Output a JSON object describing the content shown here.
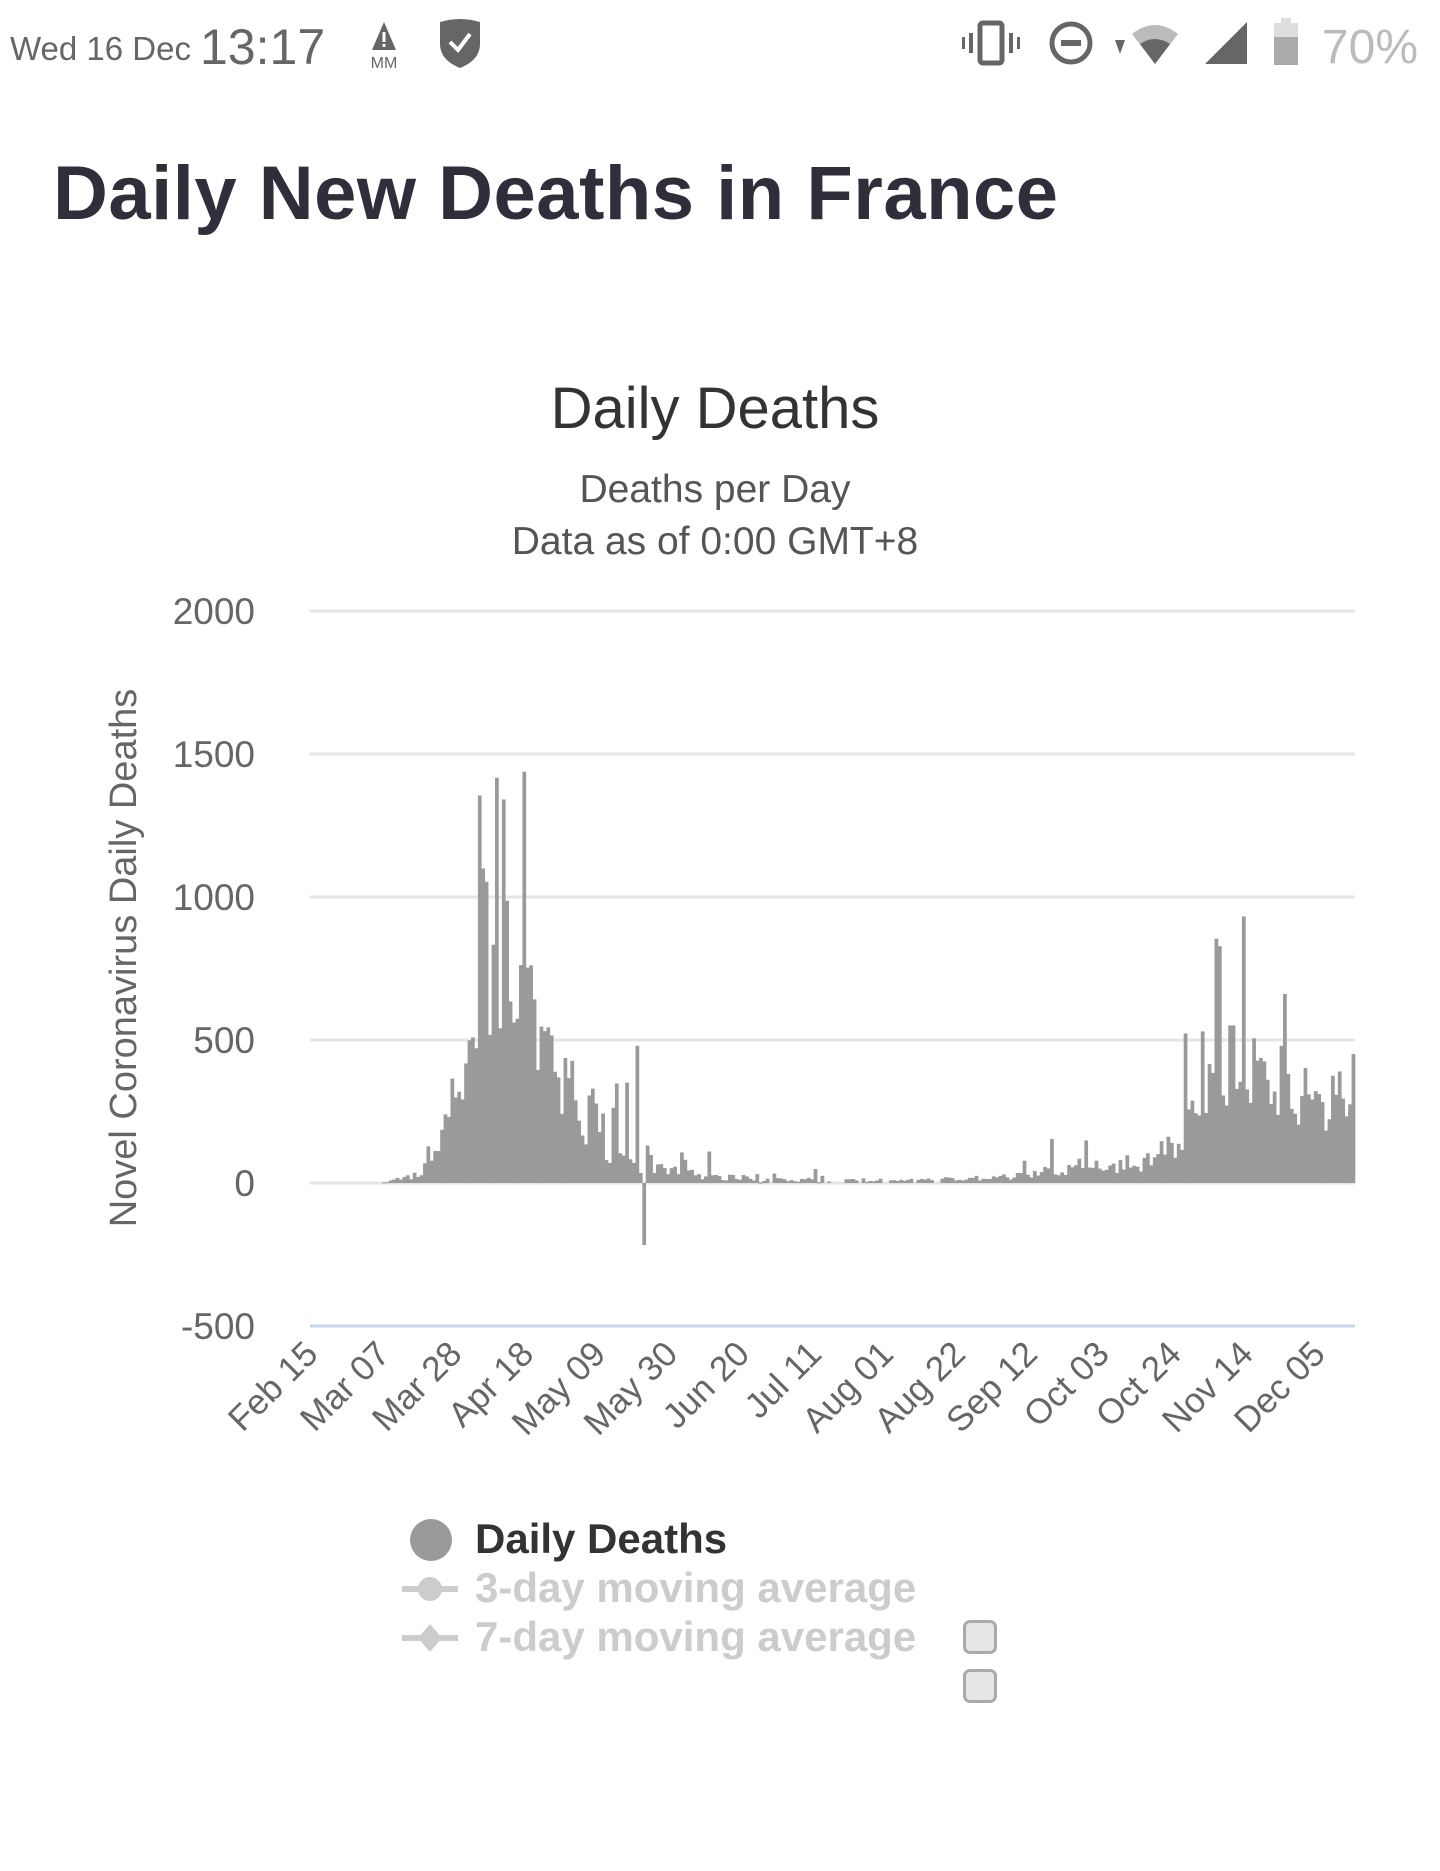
{
  "status_bar": {
    "date": "Wed 16 Dec",
    "time": "13:17",
    "battery": "70%",
    "icons": [
      "warning-mm-icon",
      "shield-check-icon",
      "vibrate-icon",
      "do-not-disturb-icon",
      "wifi-icon",
      "signal-icon",
      "battery-icon"
    ]
  },
  "page": {
    "title": "Daily New Deaths in France"
  },
  "legend": {
    "items": [
      {
        "label": "Daily Deaths",
        "enabled": true
      },
      {
        "label": "3-day moving average",
        "enabled": false
      },
      {
        "label": "7-day moving average",
        "enabled": false
      }
    ]
  },
  "colors": {
    "bar": "#9a9a9a",
    "grid": "#e6e6e6",
    "zero_axis": "#ccd6eb",
    "text": "#333333",
    "legend_disabled": "#cccccc"
  },
  "chart_data": {
    "type": "bar",
    "title": "Daily Deaths",
    "subtitle": [
      "Deaths per Day",
      "Data as of 0:00 GMT+8"
    ],
    "xlabel": "",
    "ylabel": "Novel Coronavirus Daily Deaths",
    "ylim": [
      -500,
      2000
    ],
    "yticks": [
      2000,
      1500,
      1000,
      500,
      0,
      -500
    ],
    "start_date": "Feb 15",
    "xtick_labels": [
      "Feb 15",
      "Mar 07",
      "Mar 28",
      "Apr 18",
      "May 09",
      "May 30",
      "Jun 20",
      "Jul 11",
      "Aug 01",
      "Aug 22",
      "Sep 12",
      "Oct 03",
      "Oct 24",
      "Nov 14",
      "Dec 05"
    ],
    "xtick_interval_days": 21,
    "grid": true,
    "legend_placement": "bottom",
    "series": [
      {
        "name": "Daily Deaths",
        "values": [
          0,
          0,
          0,
          0,
          0,
          0,
          0,
          0,
          0,
          0,
          0,
          0,
          0,
          0,
          0,
          0,
          0,
          0,
          0,
          0,
          0,
          2,
          3,
          9,
          12,
          18,
          12,
          21,
          27,
          13,
          36,
          21,
          27,
          69,
          128,
          78,
          112,
          112,
          186,
          240,
          231,
          365,
          299,
          319,
          292,
          418,
          499,
          509,
          471,
          1355,
          1100,
          1053,
          518,
          833,
          1417,
          541,
          1341,
          987,
          635,
          561,
          574,
          762,
          1438,
          753,
          761,
          642,
          395,
          547,
          531,
          544,
          516,
          389,
          369,
          242,
          437,
          367,
          427,
          289,
          218,
          166,
          135,
          306,
          330,
          278,
          178,
          243,
          80,
          70,
          263,
          348,
          104,
          96,
          351,
          83,
          70,
          480,
          35,
          -217,
          131,
          98,
          35,
          65,
          66,
          52,
          31,
          52,
          57,
          31,
          107,
          81,
          44,
          46,
          27,
          31,
          13,
          23,
          110,
          27,
          28,
          24,
          10,
          9,
          29,
          28,
          14,
          11,
          28,
          23,
          15,
          9,
          31,
          1,
          7,
          15,
          0,
          33,
          17,
          16,
          13,
          6,
          10,
          6,
          4,
          14,
          13,
          18,
          13,
          49,
          2,
          25,
          0,
          5,
          0,
          0,
          0,
          0,
          13,
          13,
          14,
          9,
          0,
          16,
          3,
          7,
          6,
          9,
          15,
          0,
          0,
          9,
          10,
          7,
          11,
          8,
          11,
          15,
          0,
          11,
          14,
          12,
          16,
          10,
          0,
          0,
          15,
          20,
          19,
          17,
          9,
          11,
          9,
          12,
          18,
          18,
          25,
          9,
          15,
          14,
          14,
          23,
          20,
          25,
          30,
          20,
          12,
          19,
          35,
          35,
          78,
          29,
          19,
          42,
          26,
          38,
          56,
          51,
          154,
          30,
          27,
          37,
          28,
          63,
          55,
          62,
          85,
          52,
          149,
          54,
          53,
          78,
          50,
          43,
          46,
          61,
          68,
          35,
          80,
          47,
          97,
          54,
          60,
          57,
          40,
          88,
          104,
          62,
          90,
          101,
          146,
          99,
          162,
          140,
          88,
          137,
          116,
          523,
          257,
          288,
          244,
          236,
          530,
          245,
          416,
          385,
          854,
          828,
          306,
          271,
          551,
          551,
          329,
          354,
          932,
          327,
          280,
          506,
          428,
          437,
          425,
          361,
          276,
          320,
          238,
          480,
          661,
          381,
          259,
          242,
          204,
          304,
          402,
          310,
          292,
          321,
          311,
          283,
          183,
          223,
          375,
          308,
          390,
          295,
          233,
          275,
          451
        ]
      }
    ]
  }
}
